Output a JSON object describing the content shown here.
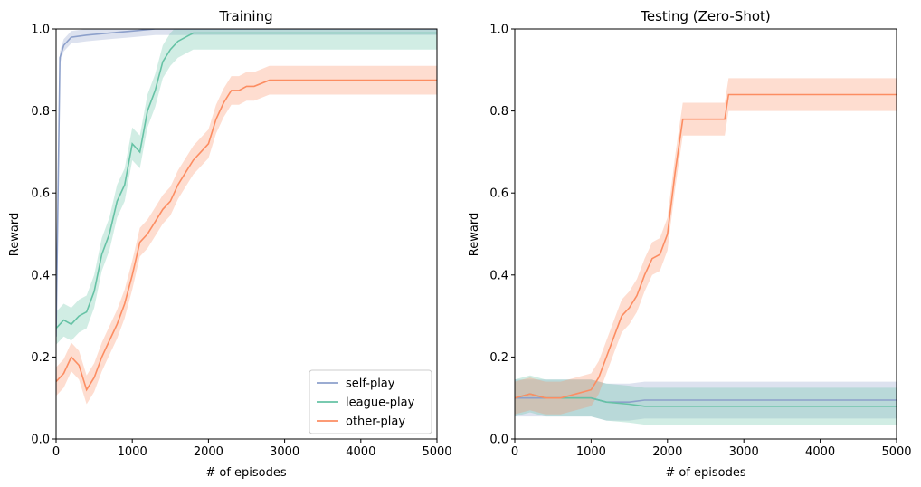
{
  "chart_data": [
    {
      "type": "line",
      "title": "Training",
      "xlabel": "# of episodes",
      "ylabel": "Reward",
      "xlim": [
        0,
        5000
      ],
      "ylim": [
        0,
        1.0
      ],
      "xticks": [
        "0",
        "1000",
        "2000",
        "3000",
        "4000",
        "5000"
      ],
      "yticks": [
        "0.0",
        "0.2",
        "0.4",
        "0.6",
        "0.8",
        "1.0"
      ],
      "grid": false,
      "legend": "bottom-right",
      "series": [
        {
          "name": "self-play",
          "color": "#8da0cb",
          "x": [
            0,
            50,
            100,
            200,
            400,
            700,
            1000,
            1300,
            2000,
            3000,
            4000,
            5000
          ],
          "y": [
            0.25,
            0.93,
            0.96,
            0.98,
            0.985,
            0.99,
            0.995,
            1.0,
            1.0,
            1.0,
            1.0,
            1.0
          ],
          "band": 0.015
        },
        {
          "name": "league-play",
          "color": "#66c2a5",
          "x": [
            0,
            100,
            200,
            300,
            400,
            500,
            600,
            700,
            800,
            900,
            1000,
            1100,
            1200,
            1300,
            1400,
            1500,
            1600,
            1700,
            1800,
            2000,
            2500,
            3000,
            4000,
            5000
          ],
          "y": [
            0.27,
            0.29,
            0.28,
            0.3,
            0.31,
            0.36,
            0.45,
            0.5,
            0.58,
            0.62,
            0.72,
            0.7,
            0.8,
            0.85,
            0.92,
            0.95,
            0.97,
            0.98,
            0.99,
            0.99,
            0.99,
            0.99,
            0.99,
            0.99
          ],
          "band": 0.04
        },
        {
          "name": "other-play",
          "color": "#fc8d62",
          "x": [
            0,
            100,
            200,
            300,
            400,
            500,
            600,
            700,
            800,
            900,
            1000,
            1100,
            1200,
            1300,
            1400,
            1500,
            1600,
            1700,
            1800,
            1900,
            2000,
            2100,
            2200,
            2300,
            2400,
            2500,
            2600,
            2800,
            3000,
            3500,
            4000,
            4500,
            5000
          ],
          "y": [
            0.14,
            0.16,
            0.2,
            0.18,
            0.12,
            0.15,
            0.2,
            0.24,
            0.28,
            0.33,
            0.4,
            0.48,
            0.5,
            0.53,
            0.56,
            0.58,
            0.62,
            0.65,
            0.68,
            0.7,
            0.72,
            0.78,
            0.82,
            0.85,
            0.85,
            0.86,
            0.86,
            0.875,
            0.875,
            0.875,
            0.875,
            0.875,
            0.875
          ],
          "band": 0.035
        }
      ]
    },
    {
      "type": "line",
      "title": "Testing (Zero-Shot)",
      "xlabel": "# of episodes",
      "ylabel": "Reward",
      "xlim": [
        0,
        5000
      ],
      "ylim": [
        0,
        1.0
      ],
      "xticks": [
        "0",
        "1000",
        "2000",
        "3000",
        "4000",
        "5000"
      ],
      "yticks": [
        "0.0",
        "0.2",
        "0.4",
        "0.6",
        "0.8",
        "1.0"
      ],
      "grid": false,
      "series": [
        {
          "name": "self-play",
          "color": "#8da0cb",
          "x": [
            0,
            200,
            400,
            600,
            800,
            1000,
            1200,
            1500,
            1700,
            2000,
            3000,
            4000,
            5000
          ],
          "y": [
            0.1,
            0.1,
            0.1,
            0.1,
            0.1,
            0.1,
            0.09,
            0.09,
            0.095,
            0.095,
            0.095,
            0.095,
            0.095
          ],
          "band": 0.045
        },
        {
          "name": "league-play",
          "color": "#66c2a5",
          "x": [
            0,
            200,
            400,
            600,
            800,
            1000,
            1200,
            1500,
            1700,
            2000,
            3000,
            4000,
            5000
          ],
          "y": [
            0.1,
            0.11,
            0.1,
            0.1,
            0.1,
            0.1,
            0.09,
            0.085,
            0.08,
            0.08,
            0.08,
            0.08,
            0.08
          ],
          "band": 0.045
        },
        {
          "name": "other-play",
          "color": "#fc8d62",
          "x": [
            0,
            200,
            400,
            600,
            800,
            1000,
            1100,
            1200,
            1300,
            1400,
            1500,
            1600,
            1700,
            1800,
            1900,
            2000,
            2100,
            2200,
            2500,
            2750,
            2800,
            3000,
            4000,
            5000
          ],
          "y": [
            0.1,
            0.11,
            0.1,
            0.1,
            0.11,
            0.12,
            0.15,
            0.2,
            0.25,
            0.3,
            0.32,
            0.35,
            0.4,
            0.44,
            0.45,
            0.5,
            0.65,
            0.78,
            0.78,
            0.78,
            0.84,
            0.84,
            0.84,
            0.84
          ],
          "band": 0.04
        }
      ]
    }
  ]
}
